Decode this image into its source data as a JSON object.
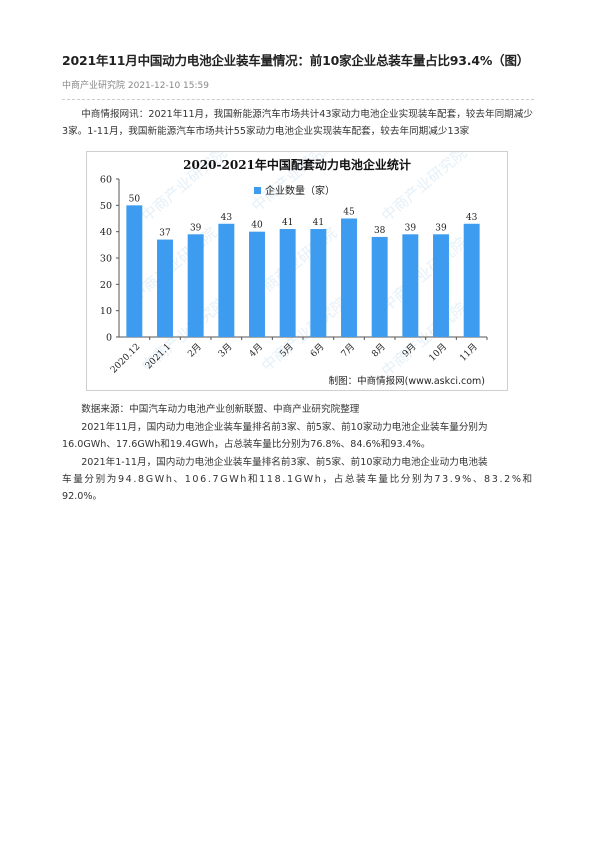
{
  "article": {
    "title": "2021年11月中国动力电池企业装车量情况：前10家企业总装车量占比93.4%（图）",
    "source_date": "中商产业研究院 2021-12-10 15:59",
    "intro": "中商情报网讯：2021年11月，我国新能源汽车市场共计43家动力电池企业实现装车配套，较去年同期减少3家。1-11月，我国新能源汽车市场共计55家动力电池企业实现装车配套，较去年同期减少13家",
    "data_source": "数据来源：中国汽车动力电池产业创新联盟、中商产业研究院整理",
    "para2": "2021年11月，国内动力电池企业装车量排名前3家、前5家、前10家动力电池企业装车量分别为16.0GWh、17.6GWh和19.4GWh，占总装车量比分别为76.8%、84.6%和93.4%。",
    "para3_line1": "2021年1-11月，国内动力电池企业装车量排名前3家、前5家、前10家动力电池企业动力电池装",
    "para3_line2": "车量分别为94.8GWh、106.7GWh和118.1GWh，占总装车量比分别为73.9%、83.2%和",
    "para3_line3": "92.0%。"
  },
  "chart_data": {
    "type": "bar",
    "title": "2020-2021年中国配套动力电池企业统计",
    "legend": "企业数量（家）",
    "credit": "制图：中商情报网(www.askci.com)",
    "watermark": "中商产业研究院",
    "categories": [
      "2020.12",
      "2021.1",
      "2月",
      "3月",
      "4月",
      "5月",
      "6月",
      "7月",
      "8月",
      "9月",
      "10月",
      "11月"
    ],
    "values": [
      50,
      37,
      39,
      43,
      40,
      41,
      41,
      45,
      38,
      39,
      39,
      43
    ],
    "yticks": [
      0,
      10,
      20,
      30,
      40,
      50,
      60
    ],
    "ylim": [
      0,
      60
    ],
    "grid": false,
    "legend_position": "top-right",
    "bar_color": "#3d9cf0"
  }
}
